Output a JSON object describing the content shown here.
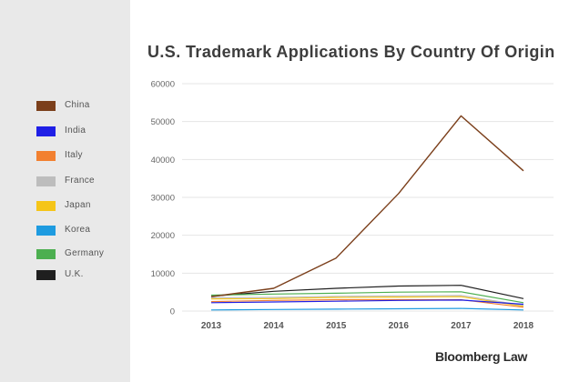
{
  "brand": "Bloomberg Law",
  "chart_data": {
    "type": "line",
    "title": "U.S. Trademark Applications By Country Of Origin",
    "xlabel": "",
    "ylabel": "",
    "x": [
      "2013",
      "2014",
      "2015",
      "2016",
      "2017",
      "2018"
    ],
    "ylim": [
      0,
      60000
    ],
    "yticks": [
      0,
      10000,
      20000,
      30000,
      40000,
      50000,
      60000
    ],
    "grid": true,
    "legend_position": "left",
    "series": [
      {
        "name": "China",
        "color": "#7b3f1b",
        "values": [
          3800,
          6000,
          14000,
          31000,
          51500,
          37000
        ]
      },
      {
        "name": "India",
        "color": "#1f1fe6",
        "values": [
          2200,
          2400,
          2600,
          2800,
          2900,
          1800
        ]
      },
      {
        "name": "Italy",
        "color": "#f28030",
        "values": [
          2500,
          2800,
          3000,
          3000,
          3000,
          1000
        ]
      },
      {
        "name": "France",
        "color": "#bdbdbd",
        "values": [
          3500,
          3600,
          3900,
          4000,
          4100,
          1500
        ]
      },
      {
        "name": "Japan",
        "color": "#f5c518",
        "values": [
          3200,
          3300,
          3600,
          3700,
          3800,
          1300
        ]
      },
      {
        "name": "Korea",
        "color": "#1e9be0",
        "values": [
          300,
          400,
          500,
          600,
          700,
          300
        ]
      },
      {
        "name": "Germany",
        "color": "#4caf50",
        "values": [
          4200,
          4500,
          4700,
          5000,
          5100,
          2200
        ]
      },
      {
        "name": "U.K.",
        "color": "#1f1f1f",
        "values": [
          3900,
          5200,
          6000,
          6600,
          6800,
          3300
        ]
      }
    ]
  }
}
